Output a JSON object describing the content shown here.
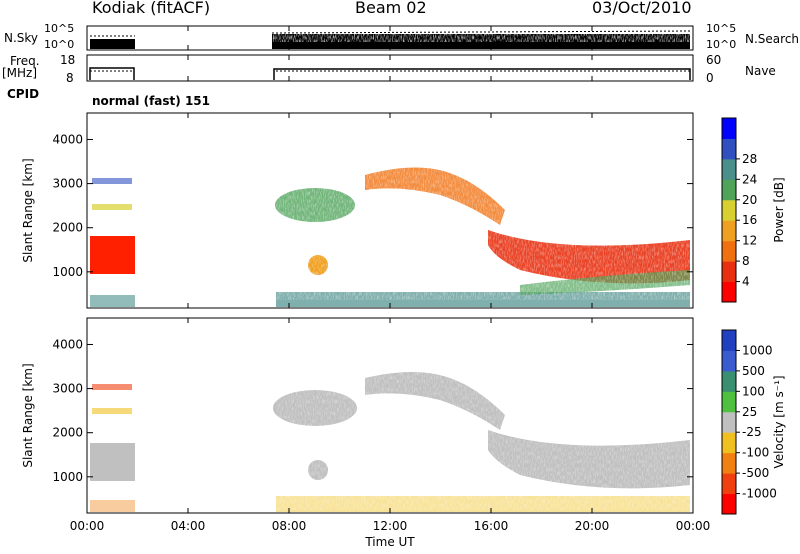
{
  "header": {
    "station": "Kodiak (fitACF)",
    "beam": "Beam 02",
    "date": "03/Oct/2010"
  },
  "labels": {
    "nsky": "N.Sky",
    "freq": "Freq.",
    "freq_unit": "[MHz]",
    "cpid": "CPID",
    "cpid_value": "normal (fast) 151",
    "nsearch": "N.Search",
    "nave": "Nave"
  },
  "chart_data": [
    {
      "type": "scatter",
      "name": "noise-panel",
      "left_axis": {
        "label": "N.Sky",
        "ticks": [
          "10^5",
          "10^0"
        ]
      },
      "right_axis": {
        "label": "N.Search",
        "ticks": [
          "10^5",
          "10^0"
        ]
      },
      "data_gap_hours": [
        [
          1.75,
          7.2
        ]
      ]
    },
    {
      "type": "scatter",
      "name": "frequency-panel",
      "left_axis": {
        "label": "Freq. [MHz]",
        "ticks": [
          18,
          8
        ]
      },
      "right_axis": {
        "label": "Nave",
        "ticks": [
          60,
          0
        ]
      },
      "data_gap_hours": [
        [
          1.75,
          7.2
        ]
      ]
    },
    {
      "type": "heatmap",
      "name": "power",
      "ylabel": "Slant Range [km]",
      "ylim": [
        180,
        4600
      ],
      "yticks": [
        1000,
        2000,
        3000,
        4000
      ],
      "xlabel": "Time UT",
      "xticks": [
        "00:00",
        "04:00",
        "08:00",
        "12:00",
        "16:00",
        "20:00",
        "00:00"
      ],
      "colorbar": {
        "label": "Power [dB]",
        "ticks": [
          4,
          8,
          12,
          16,
          20,
          24,
          28
        ],
        "colors": [
          "#0000ff",
          "#3050c0",
          "#4a8f8a",
          "#4fa45a",
          "#d8d030",
          "#f0a020",
          "#f07010",
          "#e83010",
          "#ff0000"
        ]
      },
      "data_gap_hours": [
        [
          1.75,
          7.2
        ]
      ]
    },
    {
      "type": "heatmap",
      "name": "velocity",
      "ylabel": "Slant Range [km]",
      "ylim": [
        180,
        4600
      ],
      "yticks": [
        1000,
        2000,
        3000,
        4000
      ],
      "xlabel": "Time UT",
      "xticks": [
        "00:00",
        "04:00",
        "08:00",
        "12:00",
        "16:00",
        "20:00",
        "00:00"
      ],
      "colorbar": {
        "label": "Velocity [m s^-1]",
        "ticks": [
          1000,
          500,
          100,
          25,
          -25,
          -100,
          -500,
          -1000
        ],
        "colors": [
          "#2040c0",
          "#3a5cd0",
          "#3a8f70",
          "#50c040",
          "#c0c0c0",
          "#f0c020",
          "#f08010",
          "#f04010",
          "#ff0000"
        ]
      },
      "ground_scatter_color": "#c0c0c0",
      "data_gap_hours": [
        [
          1.75,
          7.2
        ]
      ]
    }
  ],
  "axes_text": {
    "xlabel": "Time UT",
    "xticks": [
      "00:00",
      "04:00",
      "08:00",
      "12:00",
      "16:00",
      "20:00",
      "00:00"
    ],
    "ylabel_top": "Slant Range [km]",
    "ylabel_bot": "Slant Range [km]",
    "yticks": [
      "1000",
      "2000",
      "3000",
      "4000"
    ],
    "power_label": "Power [dB]",
    "power_ticks": [
      "4",
      "8",
      "12",
      "16",
      "20",
      "24",
      "28"
    ],
    "vel_label": "Velocity [m s⁻¹]",
    "vel_ticks": [
      "1000",
      "500",
      "100",
      "25",
      "-25",
      "-100",
      "-500",
      "-1000"
    ],
    "nsky_ticks": [
      "10^5",
      "10^0"
    ],
    "freq_ticks": [
      "18",
      "8"
    ],
    "nave_ticks": [
      "60",
      "0"
    ]
  }
}
